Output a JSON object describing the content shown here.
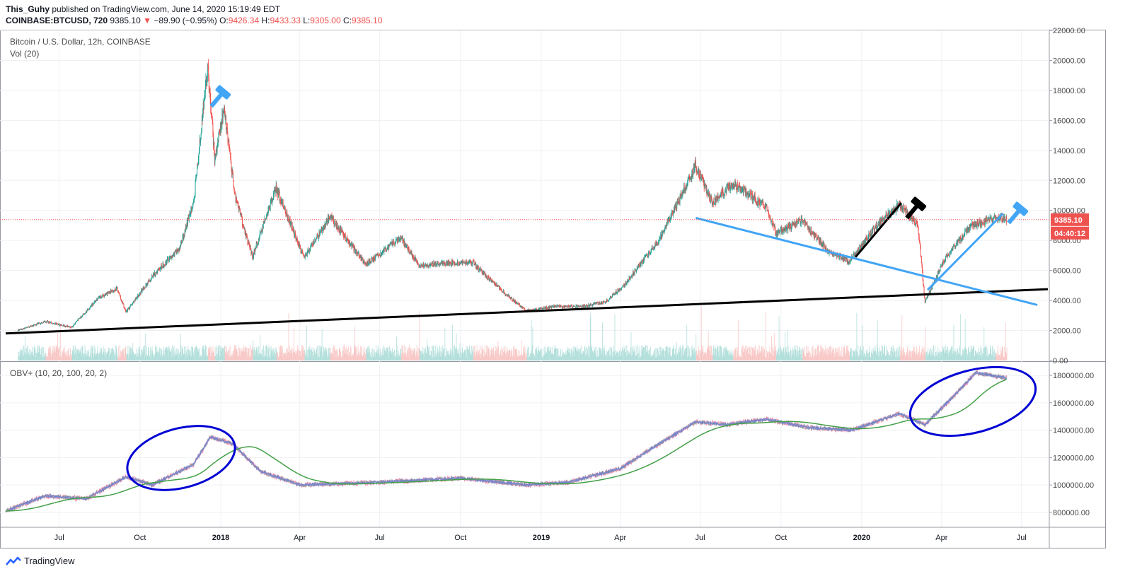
{
  "header": {
    "author": "This_Guhy",
    "published": "published on TradingView.com, June 14, 2020 15:19:49 EDT",
    "symbol": "COINBASE:BTCUSD, 720",
    "last": "9385.10",
    "change_arrow": "▼",
    "change": "−89.90 (−0.95%)",
    "o_label": "O:",
    "o_value": "9426.34",
    "h_label": "H:",
    "h_value": "9433.33",
    "l_label": "L:",
    "l_value": "9305.00",
    "c_label": "C:",
    "c_value": "9385.10"
  },
  "price_pane": {
    "title": "Bitcoin / U.S. Dollar, 12h, COINBASE",
    "vol_label": "Vol (20)",
    "price_badge": "9385.10",
    "timer_badge": "04:40:12"
  },
  "obv_pane": {
    "title": "OBV+ (10, 20, 100, 20, 2)"
  },
  "footer": {
    "brand": "TradingView"
  },
  "colors": {
    "up": "#26a69a",
    "down": "#ef5350",
    "blue_line": "#42a5f5",
    "black_line": "#000000",
    "obv_green": "#43a047",
    "obv_blue": "#7986cb",
    "ellipse": "#0000d4",
    "badge": "#ef5350"
  },
  "chart_data": [
    {
      "type": "line",
      "name": "BTCUSD price (approx. closes)",
      "x": [
        "2017-05-15",
        "2017-06-15",
        "2017-07-15",
        "2017-08-15",
        "2017-09-05",
        "2017-09-15",
        "2017-10-15",
        "2017-11-15",
        "2017-12-01",
        "2017-12-17",
        "2017-12-25",
        "2018-01-05",
        "2018-01-17",
        "2018-02-06",
        "2018-03-05",
        "2018-04-06",
        "2018-05-05",
        "2018-06-15",
        "2018-07-25",
        "2018-08-15",
        "2018-09-15",
        "2018-10-15",
        "2018-11-20",
        "2018-12-15",
        "2019-01-15",
        "2019-02-15",
        "2019-03-15",
        "2019-04-05",
        "2019-05-15",
        "2019-06-26",
        "2019-07-15",
        "2019-08-07",
        "2019-09-15",
        "2019-09-25",
        "2019-10-25",
        "2019-11-25",
        "2019-12-18",
        "2020-01-15",
        "2020-02-13",
        "2020-03-05",
        "2020-03-13",
        "2020-04-05",
        "2020-05-05",
        "2020-06-01",
        "2020-06-14"
      ],
      "y": [
        2000,
        2600,
        2200,
        4200,
        4800,
        3200,
        5600,
        7500,
        10500,
        19600,
        13500,
        16800,
        11000,
        6900,
        11500,
        6800,
        9600,
        6400,
        8200,
        6300,
        6500,
        6500,
        4500,
        3300,
        3600,
        3600,
        3900,
        5000,
        8000,
        13000,
        10500,
        11800,
        10200,
        8500,
        9300,
        7200,
        6600,
        8800,
        10400,
        9000,
        3900,
        6800,
        9000,
        9500,
        9385.1
      ],
      "ylim": [
        0,
        22000
      ],
      "y_ticks": [
        "0.00",
        "2000.00",
        "4000.00",
        "6000.00",
        "8000.00",
        "10000.00",
        "12000.00",
        "14000.00",
        "16000.00",
        "18000.00",
        "20000.00",
        "22000.00"
      ]
    },
    {
      "type": "line",
      "name": "OBV+ (approx.)",
      "x": [
        "2017-05-01",
        "2017-06-15",
        "2017-08-01",
        "2017-09-15",
        "2017-10-15",
        "2017-12-01",
        "2017-12-20",
        "2018-01-15",
        "2018-02-15",
        "2018-04-01",
        "2018-07-01",
        "2018-10-01",
        "2018-12-15",
        "2019-02-01",
        "2019-04-01",
        "2019-05-15",
        "2019-06-26",
        "2019-08-01",
        "2019-09-15",
        "2019-11-01",
        "2019-12-20",
        "2020-02-13",
        "2020-03-13",
        "2020-04-15",
        "2020-05-10",
        "2020-06-14"
      ],
      "y": [
        810000,
        920000,
        900000,
        1060000,
        1000000,
        1150000,
        1350000,
        1300000,
        1100000,
        1000000,
        1020000,
        1050000,
        1000000,
        1020000,
        1120000,
        1300000,
        1460000,
        1440000,
        1480000,
        1420000,
        1400000,
        1520000,
        1440000,
        1650000,
        1820000,
        1780000
      ],
      "ylim": [
        650000,
        1950000
      ],
      "y_ticks": [
        "800000.00",
        "1000000.00",
        "1200000.00",
        "1400000.00",
        "1600000.00",
        "1800000.00"
      ]
    }
  ],
  "x_ticks": [
    "Jul",
    "Oct",
    "2018",
    "Apr",
    "Jul",
    "Oct",
    "2019",
    "Apr",
    "Jul",
    "Oct",
    "2020",
    "Apr",
    "Jul"
  ]
}
